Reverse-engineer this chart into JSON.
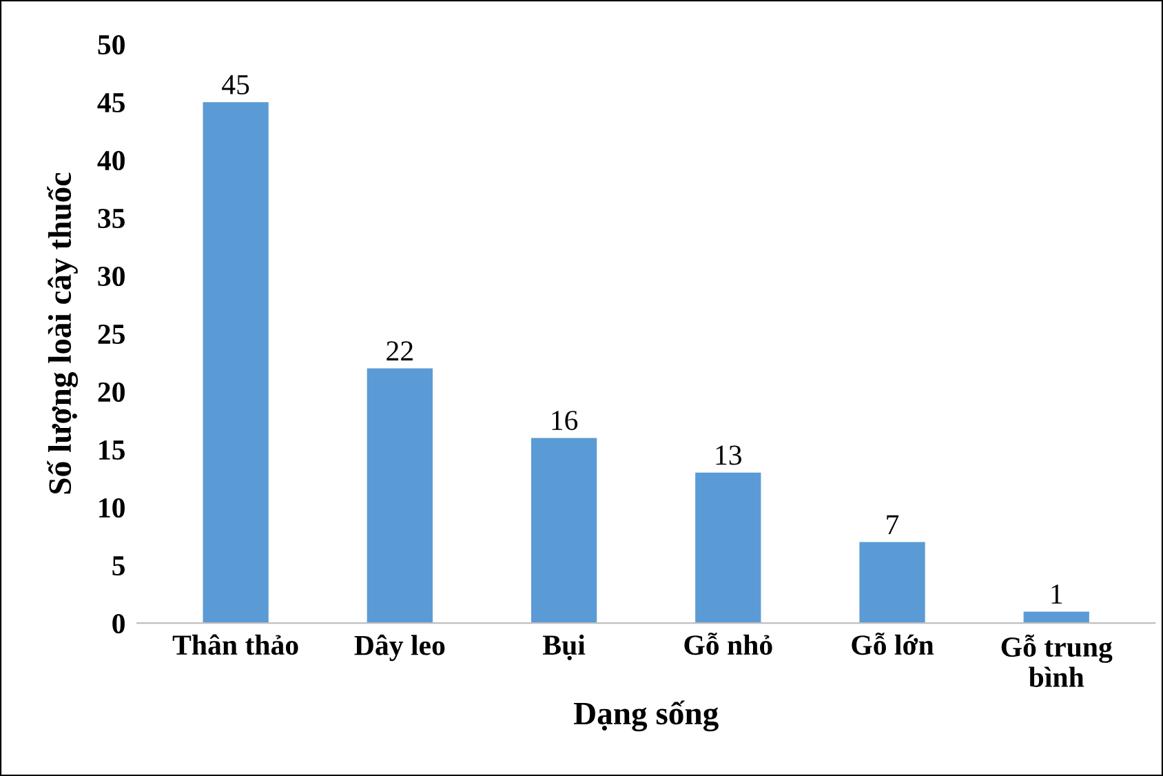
{
  "chart_data": {
    "type": "bar",
    "xlabel": "Dạng sống",
    "ylabel": "Số lượng loài cây thuốc",
    "categories": [
      "Thân thảo",
      "Dây leo",
      "Bụi",
      "Gỗ nhỏ",
      "Gỗ lớn",
      "Gỗ trung bình"
    ],
    "values": [
      45,
      22,
      16,
      13,
      7,
      1
    ],
    "color": "#5b9bd5",
    "ylim": [
      0,
      50
    ],
    "yticks": [
      0,
      5,
      10,
      15,
      20,
      25,
      30,
      35,
      40,
      45,
      50
    ],
    "data_labels": true,
    "grid": false,
    "legend": false
  }
}
